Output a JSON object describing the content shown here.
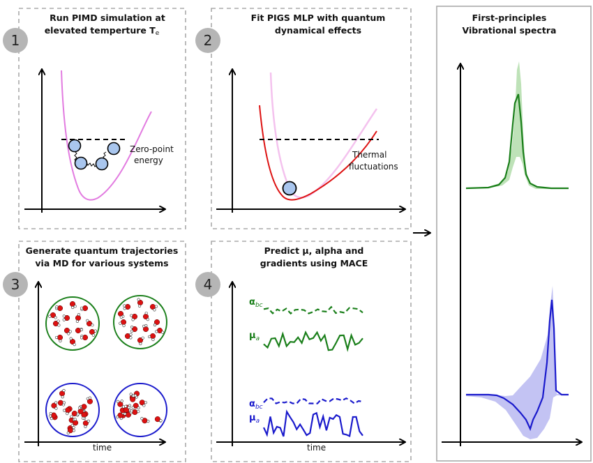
{
  "panel1": {
    "step": "1",
    "title_line1": "Run PIMD simulation at",
    "title_line2": "elevated temperture T",
    "title_sub": "e",
    "label_line1": "Zero-point",
    "label_line2": "energy"
  },
  "panel2": {
    "step": "2",
    "title_line1": "Fit PIGS MLP with quantum",
    "title_line2": "dynamical effects",
    "label_line1": "Thermal",
    "label_line2": "fluctuations"
  },
  "panel3": {
    "step": "3",
    "title_line1": "Generate quantum trajectories",
    "title_line2": "via MD for various systems",
    "xlabel": "time"
  },
  "panel4": {
    "step": "4",
    "title_line1": "Predict μ, alpha and",
    "title_line2": "gradients using MACE",
    "green_alpha": "α",
    "green_alpha_sub": "bc",
    "green_mu": "μ",
    "green_mu_sub": "a",
    "blue_alpha": "α",
    "blue_alpha_sub": "bc",
    "blue_mu": "μ",
    "blue_mu_sub": "a",
    "xlabel": "time"
  },
  "panel5": {
    "title_line1": "First-principles",
    "title_line2": "Vibrational spectra"
  },
  "colors": {
    "green": "#1a7f1a",
    "blue": "#1a1acc",
    "magenta": "#e27be0",
    "red": "#dd1111",
    "bead": "#a9c6ee",
    "dashed_border": "#aaaaaa"
  }
}
